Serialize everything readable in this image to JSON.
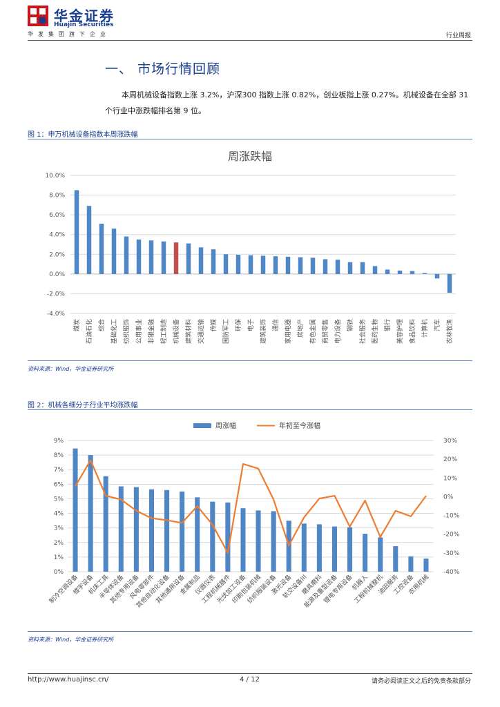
{
  "header": {
    "logo_cn": "华金证券",
    "logo_en": "Huajin Securities",
    "logo_sub": "华发集团旗下企业",
    "doc_type": "行业周报"
  },
  "section": {
    "title": "一、 市场行情回顾",
    "paragraph": "本周机械设备指数上涨 3.2%，沪深300 指数上涨 0.82%，创业板指上涨 0.27%。机械设备在全部 31 个行业中涨跌幅排名第 9 位。"
  },
  "figure1": {
    "caption": "图 1：申万机械设备指数本周涨跌幅",
    "source": "资料来源：Wind，华金证券研究所"
  },
  "figure2": {
    "caption": "图 2：机械各细分子行业平均涨跌幅",
    "source": "资料来源：Wind，华金证券研究所"
  },
  "footer": {
    "url": "http://www.huajinsc.cn/",
    "page": "4 / 12",
    "disclaimer": "请务必阅读正文之后的免责条款部分"
  },
  "chart_data": [
    {
      "type": "bar",
      "title": "周涨跌幅",
      "categories": [
        "煤炭",
        "石油石化",
        "综合",
        "基础化工",
        "纺织服饰",
        "公用事业",
        "非银金融",
        "轻工制造",
        "机械设备",
        "建筑材料",
        "交通运输",
        "传媒",
        "国防军工",
        "环保",
        "电子",
        "建筑装饰",
        "通信",
        "家用电器",
        "房地产",
        "有色金属",
        "商贸零售",
        "电力设备",
        "钢铁",
        "社会服务",
        "医药生物",
        "银行",
        "美容护理",
        "食品饮料",
        "计算机",
        "汽车",
        "农林牧渔"
      ],
      "values": [
        8.5,
        6.9,
        5.1,
        4.6,
        3.8,
        3.5,
        3.4,
        3.3,
        3.2,
        3.1,
        2.7,
        2.5,
        2.0,
        1.95,
        1.9,
        1.85,
        1.8,
        1.75,
        1.7,
        1.65,
        1.5,
        1.45,
        1.2,
        1.2,
        0.8,
        0.45,
        0.35,
        0.3,
        0.1,
        -0.45,
        -1.9
      ],
      "highlight": "机械设备",
      "ylim": [
        -4,
        10
      ],
      "yticks": [
        "-4.0%",
        "-2.0%",
        "0.0%",
        "2.0%",
        "4.0%",
        "6.0%",
        "8.0%",
        "10.0%"
      ],
      "colors": {
        "bar": "#4f86c6",
        "highlight": "#c0504d"
      },
      "grid": true
    },
    {
      "type": "bar+line",
      "categories": [
        "制冷空调设备",
        "楼宇设备",
        "机床工具",
        "半导体设备",
        "其他专用设备",
        "风电零部件",
        "其他自动化设备",
        "其他通用设备",
        "金属制品",
        "仪器仪表",
        "工程机械器件",
        "光伏加工设备",
        "印刷包装机械",
        "纺织服装设备",
        "激光设备",
        "轨交设备III",
        "磨具磨料",
        "能源及重型设备",
        "锂电专用设备",
        "机器人",
        "工程机械整机",
        "油田服务",
        "工控设备",
        "农用机械"
      ],
      "series": [
        {
          "name": "周涨幅",
          "type": "bar",
          "axis": "left",
          "values": [
            8.45,
            8.0,
            6.55,
            5.85,
            5.8,
            5.65,
            5.6,
            5.5,
            5.1,
            4.8,
            4.75,
            4.35,
            4.2,
            4.15,
            3.5,
            3.3,
            3.25,
            3.1,
            3.05,
            2.6,
            2.35,
            1.75,
            1.05,
            0.9
          ]
        },
        {
          "name": "年初至今涨幅",
          "type": "line",
          "axis": "right",
          "values": [
            5.5,
            19.5,
            0.5,
            -1.5,
            -7.5,
            -11.5,
            -12.5,
            -14,
            -5,
            -15,
            -30,
            17.5,
            15,
            -1.5,
            -26,
            -11,
            -1,
            0.5,
            -16,
            -2,
            -21.5,
            -7.5,
            -10.5,
            0.5
          ]
        }
      ],
      "ylim_left": [
        0,
        9
      ],
      "yticks_left": [
        "0%",
        "1%",
        "2%",
        "3%",
        "4%",
        "5%",
        "6%",
        "7%",
        "8%",
        "9%"
      ],
      "ylim_right": [
        -40,
        30
      ],
      "yticks_right": [
        "-40%",
        "-30%",
        "-20%",
        "-10%",
        "0%",
        "10%",
        "20%",
        "30%"
      ],
      "colors": {
        "bar": "#4f86c6",
        "line": "#ed7d31"
      },
      "legend_position": "top",
      "grid": true
    }
  ]
}
